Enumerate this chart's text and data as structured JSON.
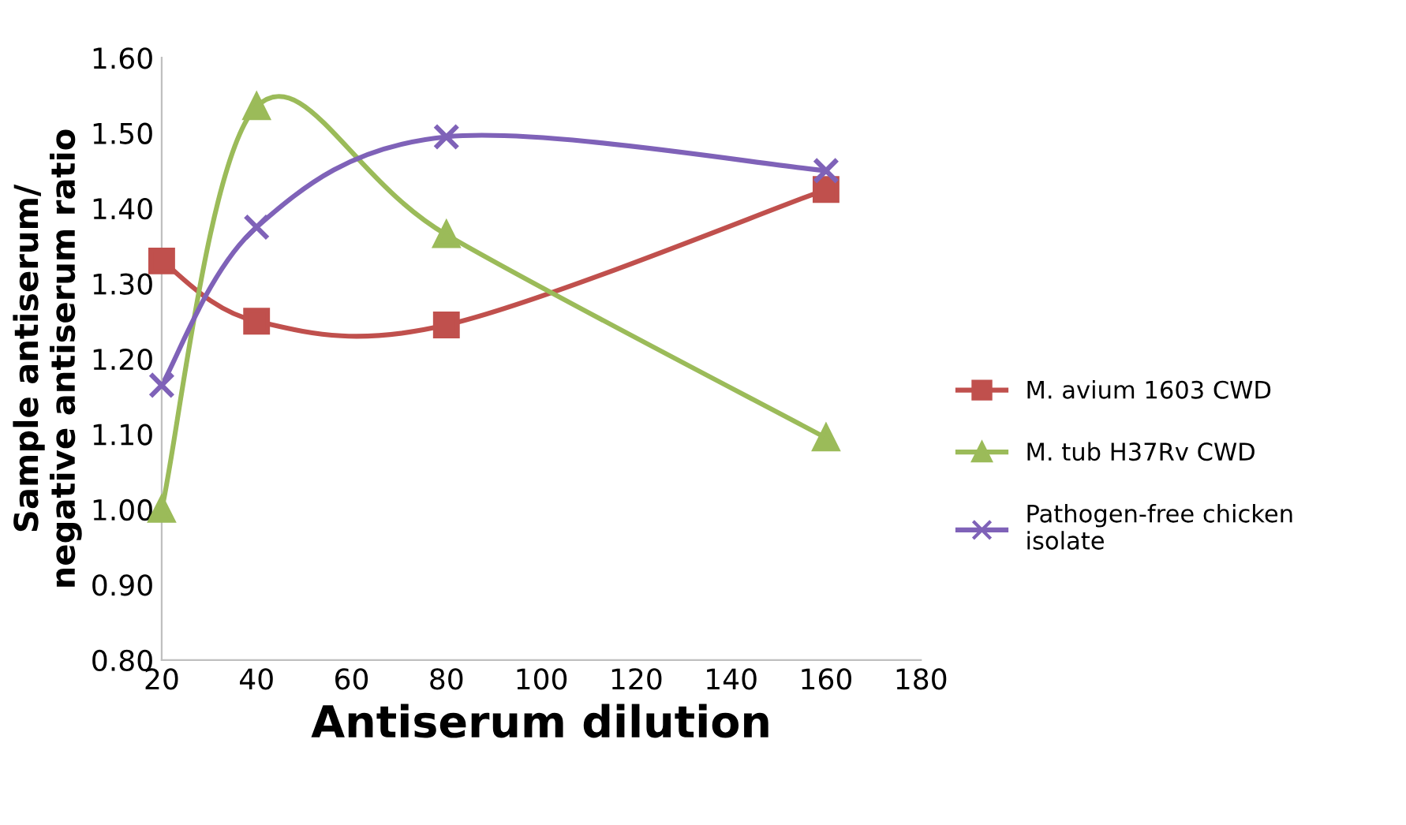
{
  "chart_data": {
    "type": "line",
    "xlabel": "Antiserum dilution",
    "ylabel": "Sample antiserum/\nnegative antiserum ratio",
    "x": [
      20,
      40,
      80,
      160
    ],
    "series": [
      {
        "name": "M. avium 1603 CWD",
        "color": "#c0504d",
        "marker": "square",
        "values": [
          1.33,
          1.25,
          1.245,
          1.425
        ]
      },
      {
        "name": "M. tub H37Rv CWD",
        "color": "#9bbb59",
        "marker": "triangle",
        "values": [
          1.0,
          1.535,
          1.365,
          1.095
        ]
      },
      {
        "name": "Pathogen-free chicken\nisolate",
        "color": "#7f62b8",
        "marker": "cross",
        "values": [
          1.165,
          1.375,
          1.495,
          1.45
        ]
      }
    ],
    "xlim": [
      20,
      180
    ],
    "xticks": [
      20,
      40,
      60,
      80,
      100,
      120,
      140,
      160,
      180
    ],
    "ylim": [
      0.8,
      1.6
    ],
    "yticks": [
      {
        "value": 0.8,
        "label": "0.80"
      },
      {
        "value": 0.9,
        "label": "0.90"
      },
      {
        "value": 1.0,
        "label": "1.00"
      },
      {
        "value": 1.1,
        "label": "1.10"
      },
      {
        "value": 1.2,
        "label": "1.20"
      },
      {
        "value": 1.3,
        "label": "1.30"
      },
      {
        "value": 1.4,
        "label": "1.40"
      },
      {
        "value": 1.5,
        "label": "1.50"
      },
      {
        "value": 1.6,
        "label": "1.60"
      }
    ],
    "grid": false,
    "legend": "right"
  }
}
